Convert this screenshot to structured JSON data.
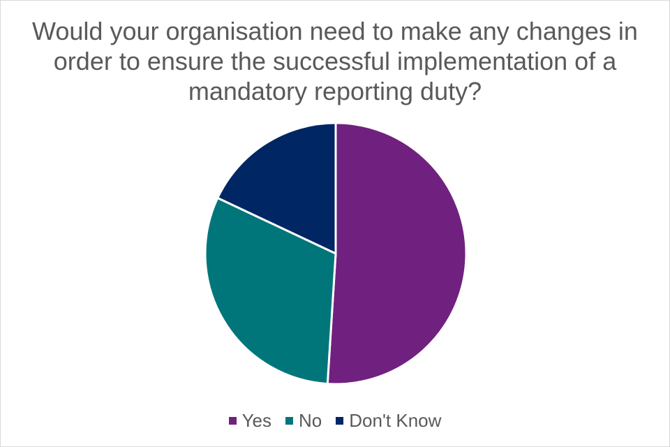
{
  "chart_data": {
    "type": "pie",
    "title": "Would your organisation need to make any changes in\norder to ensure the successful implementation of a\nmandatory reporting duty?",
    "legend_position": "bottom",
    "start_angle_deg": 0,
    "direction": "clockwise",
    "slices": [
      {
        "label": "Yes",
        "value": 51,
        "color": "#70217f"
      },
      {
        "label": "No",
        "value": 31,
        "color": "#00767a"
      },
      {
        "label": "Don't Know",
        "value": 18,
        "color": "#002664"
      }
    ],
    "slice_border_color": "#ffffff",
    "show_data_labels": false
  }
}
